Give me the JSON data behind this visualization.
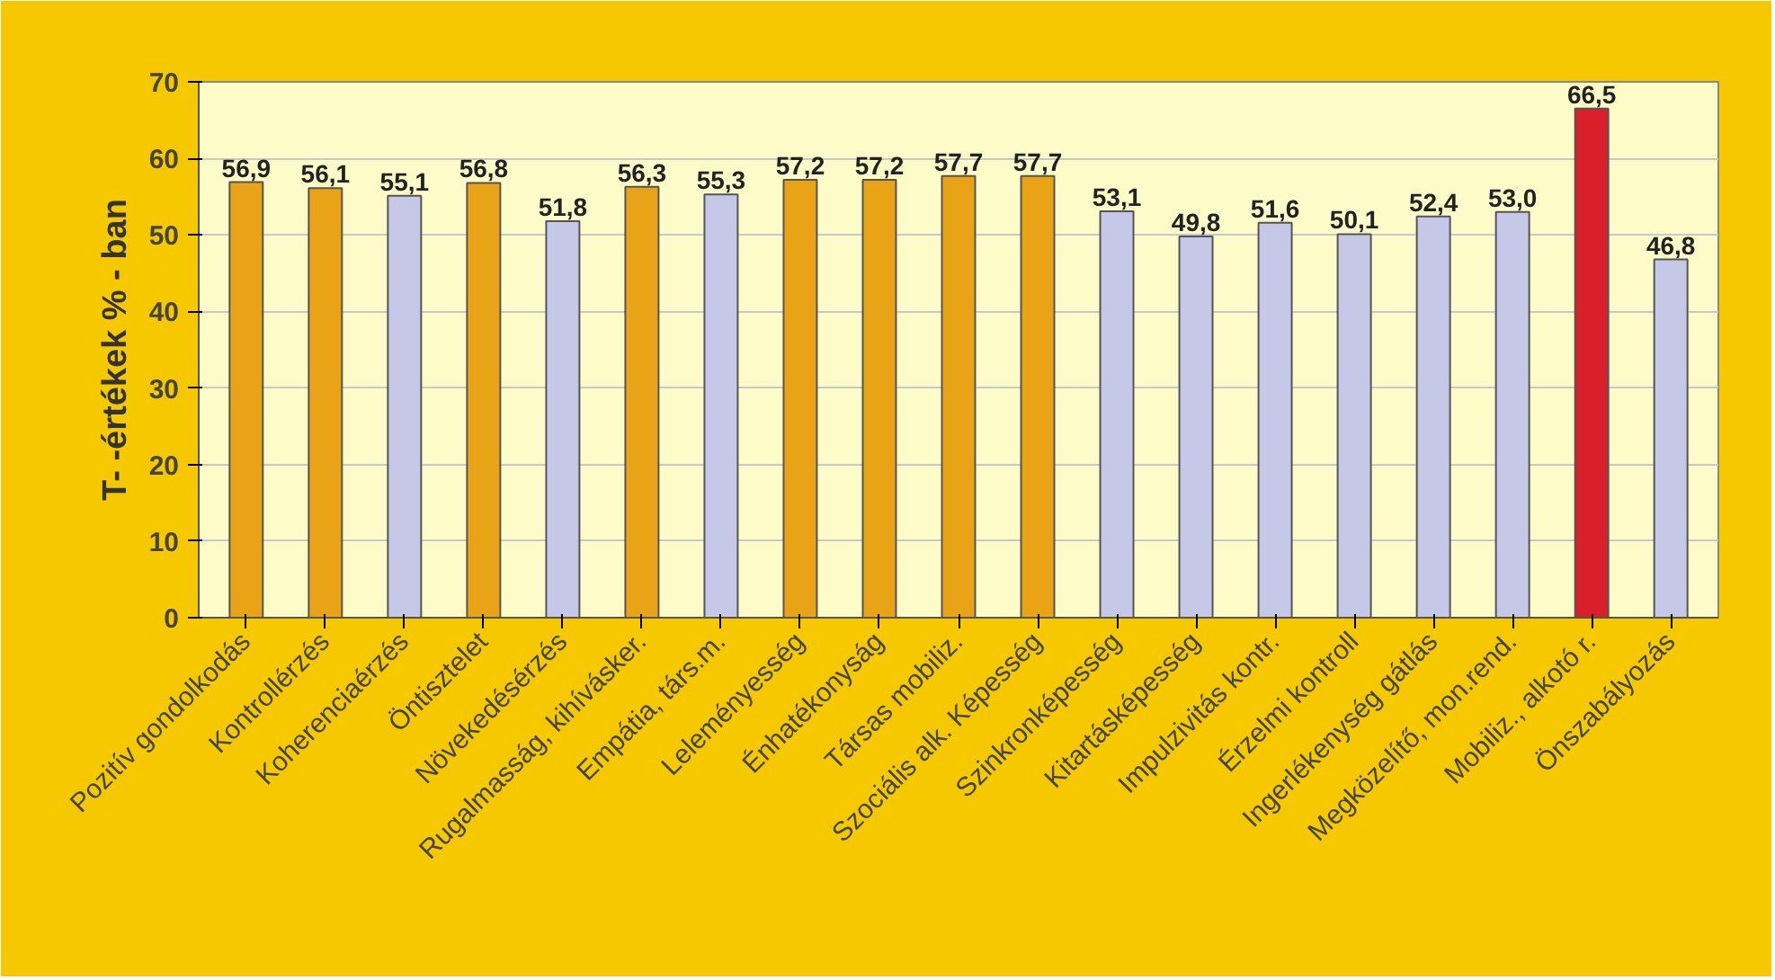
{
  "chart_data": {
    "type": "bar",
    "ylabel": "T- -értékek % - ban",
    "categories": [
      "Pozitív gondolkodás",
      "Kontrollérzés",
      "Koherenciaérzés",
      "Öntisztelet",
      "Növekedésérzés",
      "Rugalmasság, kihívásker.",
      "Empátia, társ.m.",
      "Leleményesség",
      "Énhatékonyság",
      "Társas mobiliz.",
      "Szociális alk. Képesség",
      "Szinkronképesség",
      "Kitartásképesség",
      "Impulzivitás kontr.",
      "Érzelmi kontroll",
      "Ingerlékenység gátlás",
      "Megközelítő, mon.rend.",
      "Mobiliz., alkotó r.",
      "Önszabályozás"
    ],
    "values": [
      56.9,
      56.1,
      55.1,
      56.8,
      51.8,
      56.3,
      55.3,
      57.2,
      57.2,
      57.7,
      57.7,
      53.1,
      49.8,
      51.6,
      50.1,
      52.4,
      53.0,
      66.5,
      46.8
    ],
    "value_labels": [
      "56,9",
      "56,1",
      "55,1",
      "56,8",
      "51,8",
      "56,3",
      "55,3",
      "57,2",
      "57,2",
      "57,7",
      "57,7",
      "53,1",
      "49,8",
      "51,6",
      "50,1",
      "52,4",
      "53,0",
      "66,5",
      "46,8"
    ],
    "colors": [
      "#e8a317",
      "#e8a317",
      "#c5c8e6",
      "#e8a317",
      "#c5c8e6",
      "#e8a317",
      "#c5c8e6",
      "#e8a317",
      "#e8a317",
      "#e8a317",
      "#e8a317",
      "#c5c8e6",
      "#c5c8e6",
      "#c5c8e6",
      "#c5c8e6",
      "#c5c8e6",
      "#c5c8e6",
      "#d9202a",
      "#c5c8e6"
    ],
    "ylim": [
      0,
      70
    ],
    "yticks": [
      0,
      10,
      20,
      30,
      40,
      50,
      60,
      70
    ],
    "grid": "y"
  }
}
